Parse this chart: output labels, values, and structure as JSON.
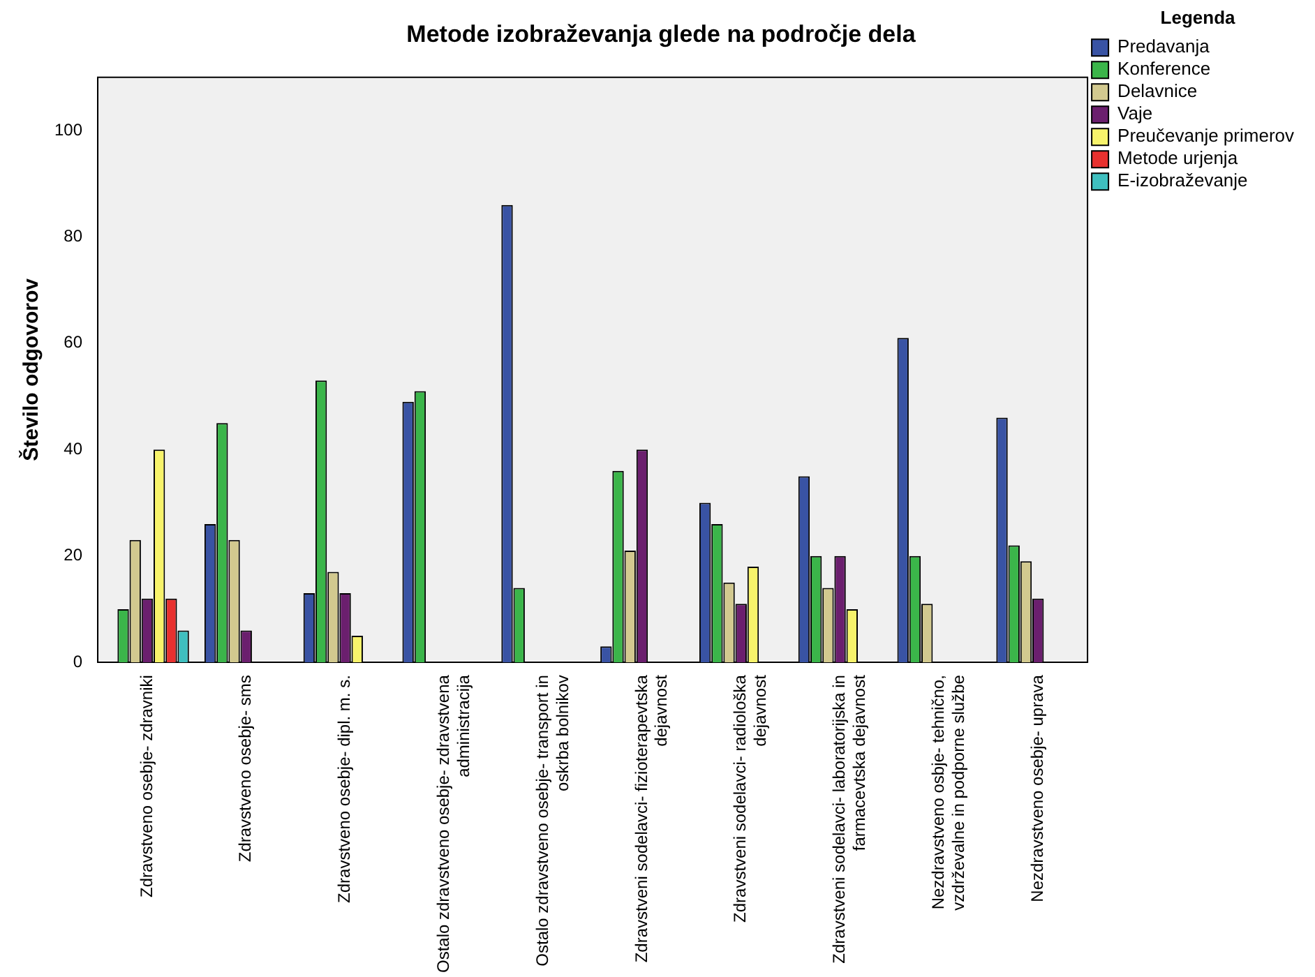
{
  "chart_data": {
    "type": "bar",
    "title": "Metode izobraževanja glede na področje dela",
    "ylabel": "Število odgovorov",
    "legend_title": "Legenda",
    "categories": [
      "Zdravstveno osebje- zdravniki",
      "Zdravstveno osebje- sms",
      "Zdravstveno osebje- dipl. m. s.",
      "Ostalo zdravstveno osebje- zdravstvena administracija",
      "Ostalo zdravstveno osebje- transport in oskrba bolnikov",
      "Zdravstveni sodelavci- fizioterapevtska dejavnost",
      "Zdravstveni sodelavci- radiološka dejavnost",
      "Zdravstveni sodelavci- laboratorijska in farmacevtska dejavnost",
      "Nezdravstveno osbje- tehnično, vzdrževalne in podporne službe",
      "Nezdravstveno osebje- uprava"
    ],
    "series": [
      {
        "name": "Predavanja",
        "color": "#3953a4",
        "values": [
          0,
          26,
          13,
          49,
          86,
          3,
          30,
          35,
          61,
          46
        ]
      },
      {
        "name": "Konference",
        "color": "#3bb54a",
        "values": [
          10,
          45,
          53,
          51,
          14,
          36,
          26,
          20,
          20,
          22
        ]
      },
      {
        "name": "Delavnice",
        "color": "#d2c98f",
        "values": [
          23,
          23,
          17,
          0,
          0,
          21,
          15,
          14,
          11,
          19
        ]
      },
      {
        "name": "Vaje",
        "color": "#6b1f6e",
        "values": [
          12,
          6,
          13,
          0,
          0,
          40,
          11,
          20,
          0,
          12
        ]
      },
      {
        "name": "Preučevanje primerov",
        "color": "#f7f36b",
        "values": [
          40,
          0,
          5,
          0,
          0,
          0,
          18,
          10,
          0,
          0
        ]
      },
      {
        "name": "Metode urjenja",
        "color": "#e8312f",
        "values": [
          12,
          0,
          0,
          0,
          0,
          0,
          0,
          0,
          0,
          0
        ]
      },
      {
        "name": "E-izobraževanje",
        "color": "#3fbfbf",
        "values": [
          6,
          0,
          0,
          0,
          0,
          0,
          0,
          0,
          0,
          0
        ]
      }
    ],
    "ylim": [
      0,
      110
    ],
    "yticks": [
      0,
      20,
      40,
      60,
      80,
      100
    ],
    "grid": false,
    "legend": "top right"
  }
}
